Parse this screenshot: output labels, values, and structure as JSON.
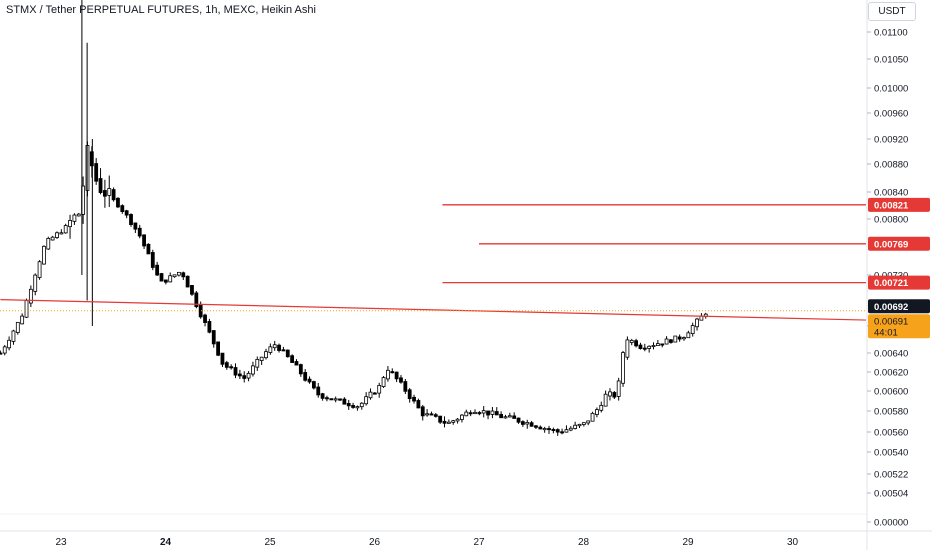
{
  "header": {
    "title": "STMX / Tether PERPETUAL FUTURES, 1h, MEXC, Heikin Ashi",
    "currency": "USDT"
  },
  "chart_data": {
    "type": "candlestick",
    "style": "Heikin Ashi",
    "x_ticks": [
      {
        "label": "23",
        "day": 23,
        "bold": false
      },
      {
        "label": "24",
        "day": 24,
        "bold": true
      },
      {
        "label": "25",
        "day": 25,
        "bold": false
      },
      {
        "label": "26",
        "day": 26,
        "bold": false
      },
      {
        "label": "27",
        "day": 27,
        "bold": false
      },
      {
        "label": "28",
        "day": 28,
        "bold": false
      },
      {
        "label": "29",
        "day": 29,
        "bold": false
      },
      {
        "label": "30",
        "day": 30,
        "bold": false
      }
    ],
    "y_ticks": [
      "0.01100",
      "0.01050",
      "0.01000",
      "0.00960",
      "0.00920",
      "0.00880",
      "0.00840",
      "0.00800",
      "0.00730",
      "0.00670",
      "0.00640",
      "0.00620",
      "0.00600",
      "0.00580",
      "0.00560",
      "0.00540",
      "0.00522",
      "0.00504",
      "0.00000"
    ],
    "y_tick_values": [
      0.011,
      0.0105,
      0.01,
      0.0096,
      0.0092,
      0.0088,
      0.0084,
      0.008,
      0.0073,
      0.0067,
      0.0064,
      0.0062,
      0.006,
      0.0058,
      0.0056,
      0.0054,
      0.00522,
      0.00504,
      0.0
    ],
    "horizontal_lines": [
      {
        "price": 0.00821,
        "label": "0.00821",
        "start_day": 26.65
      },
      {
        "price": 0.00769,
        "label": "0.00769",
        "start_day": 27.0
      },
      {
        "price": 0.00721,
        "label": "0.00721",
        "start_day": 26.65
      }
    ],
    "trendline": {
      "start": {
        "day": 22.42,
        "price": 0.00701
      },
      "end": {
        "day": 30.3,
        "price": 0.00677
      }
    },
    "price_labels": {
      "last": {
        "value": "0.00692",
        "price": 0.00692
      },
      "current": {
        "value": "0.00691",
        "countdown": "44:01",
        "price": 0.00688
      }
    },
    "key_points": [
      {
        "day": 22.42,
        "price": 0.0064
      },
      {
        "day": 22.62,
        "price": 0.0068
      },
      {
        "day": 22.85,
        "price": 0.0077
      },
      {
        "day": 23.05,
        "price": 0.0079
      },
      {
        "day": 23.18,
        "price": 0.0081
      },
      {
        "day": 23.25,
        "price": 0.009
      },
      {
        "day": 23.35,
        "price": 0.0085
      },
      {
        "day": 23.55,
        "price": 0.0082
      },
      {
        "day": 23.75,
        "price": 0.0078
      },
      {
        "day": 23.95,
        "price": 0.0072
      },
      {
        "day": 24.15,
        "price": 0.00735
      },
      {
        "day": 24.35,
        "price": 0.0068
      },
      {
        "day": 24.55,
        "price": 0.00628
      },
      {
        "day": 24.75,
        "price": 0.00613
      },
      {
        "day": 24.95,
        "price": 0.0064
      },
      {
        "day": 25.05,
        "price": 0.0065
      },
      {
        "day": 25.25,
        "price": 0.00625
      },
      {
        "day": 25.45,
        "price": 0.00597
      },
      {
        "day": 25.65,
        "price": 0.0059
      },
      {
        "day": 25.85,
        "price": 0.00585
      },
      {
        "day": 26.05,
        "price": 0.00605
      },
      {
        "day": 26.12,
        "price": 0.00625
      },
      {
        "day": 26.3,
        "price": 0.006
      },
      {
        "day": 26.45,
        "price": 0.00578
      },
      {
        "day": 26.7,
        "price": 0.00568
      },
      {
        "day": 26.95,
        "price": 0.00582
      },
      {
        "day": 27.2,
        "price": 0.00575
      },
      {
        "day": 27.5,
        "price": 0.00568
      },
      {
        "day": 27.75,
        "price": 0.0056
      },
      {
        "day": 28.0,
        "price": 0.00567
      },
      {
        "day": 28.12,
        "price": 0.0058
      },
      {
        "day": 28.22,
        "price": 0.00597
      },
      {
        "day": 28.32,
        "price": 0.00595
      },
      {
        "day": 28.4,
        "price": 0.00658
      },
      {
        "day": 28.55,
        "price": 0.00647
      },
      {
        "day": 28.75,
        "price": 0.00652
      },
      {
        "day": 28.95,
        "price": 0.00658
      },
      {
        "day": 29.2,
        "price": 0.0069
      }
    ]
  }
}
